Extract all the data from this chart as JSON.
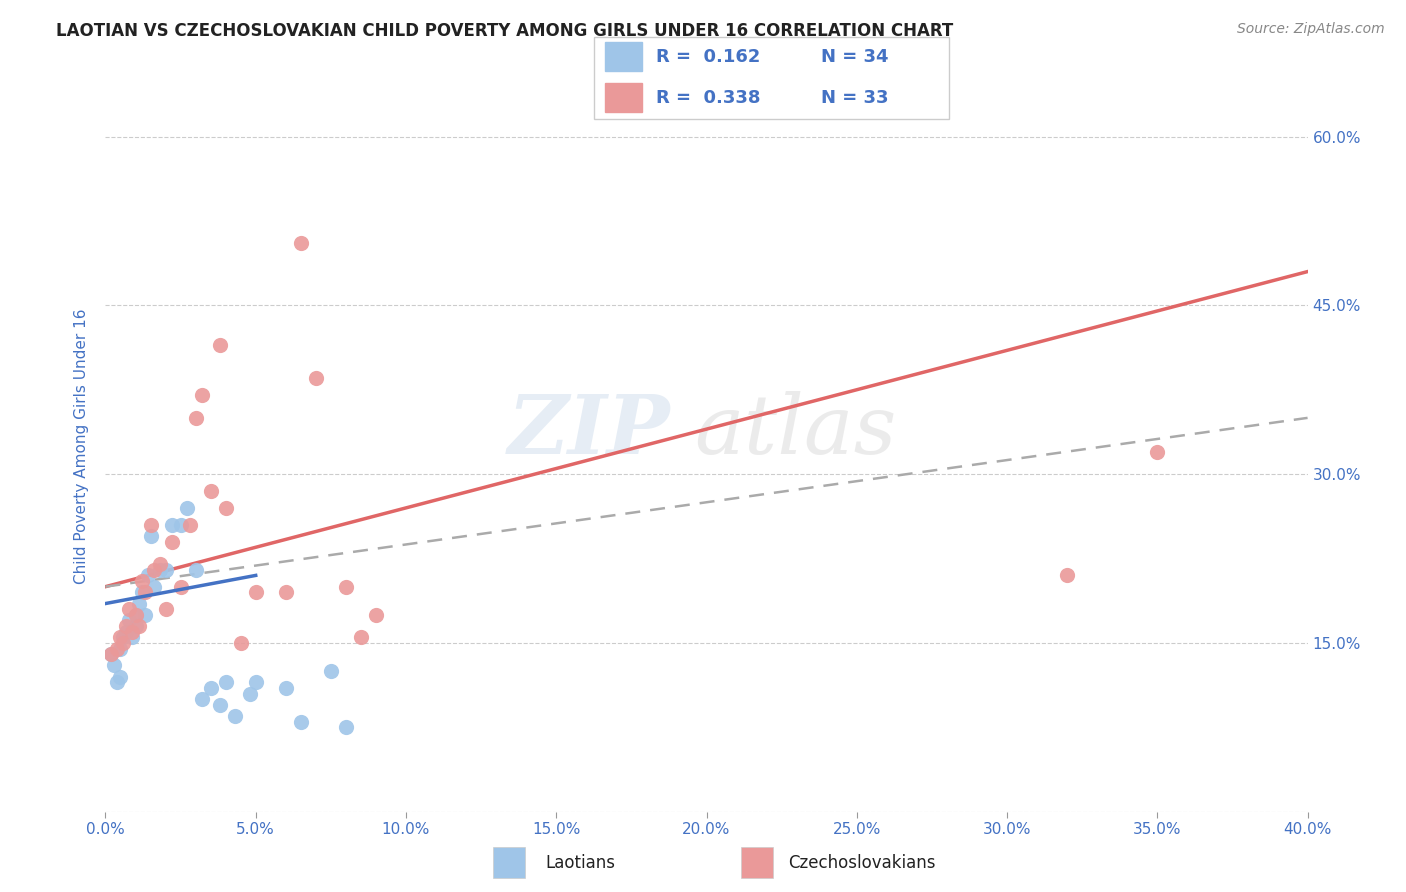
{
  "title": "LAOTIAN VS CZECHOSLOVAKIAN CHILD POVERTY AMONG GIRLS UNDER 16 CORRELATION CHART",
  "source": "Source: ZipAtlas.com",
  "ylabel": "Child Poverty Among Girls Under 16",
  "xlim": [
    0.0,
    0.4
  ],
  "ylim": [
    0.0,
    0.65
  ],
  "xticks": [
    0.0,
    0.05,
    0.1,
    0.15,
    0.2,
    0.25,
    0.3,
    0.35,
    0.4
  ],
  "ytick_values": [
    0.0,
    0.15,
    0.3,
    0.45,
    0.6
  ],
  "right_ytick_labels": [
    "15.0%",
    "30.0%",
    "45.0%",
    "60.0%"
  ],
  "right_ytick_values": [
    0.15,
    0.3,
    0.45,
    0.6
  ],
  "watermark_zip": "ZIP",
  "watermark_atlas": "atlas",
  "blue_color": "#9fc5e8",
  "pink_color": "#ea9999",
  "pink_line_color": "#e06666",
  "blue_dash_color": "#9fc5e8",
  "blue_line_solid_color": "#4472c4",
  "label_color": "#4472c4",
  "legend_r1": "R =  0.162",
  "legend_n1": "N = 34",
  "legend_r2": "R =  0.338",
  "legend_n2": "N = 33",
  "laotians_x": [
    0.002,
    0.003,
    0.004,
    0.005,
    0.005,
    0.006,
    0.007,
    0.008,
    0.009,
    0.01,
    0.01,
    0.011,
    0.012,
    0.013,
    0.014,
    0.015,
    0.016,
    0.018,
    0.02,
    0.022,
    0.025,
    0.027,
    0.03,
    0.032,
    0.035,
    0.038,
    0.04,
    0.043,
    0.048,
    0.05,
    0.06,
    0.065,
    0.075,
    0.08
  ],
  "laotians_y": [
    0.14,
    0.13,
    0.115,
    0.145,
    0.12,
    0.155,
    0.16,
    0.17,
    0.155,
    0.165,
    0.175,
    0.185,
    0.195,
    0.175,
    0.21,
    0.245,
    0.2,
    0.215,
    0.215,
    0.255,
    0.255,
    0.27,
    0.215,
    0.1,
    0.11,
    0.095,
    0.115,
    0.085,
    0.105,
    0.115,
    0.11,
    0.08,
    0.125,
    0.075
  ],
  "czechoslovakians_x": [
    0.002,
    0.004,
    0.005,
    0.006,
    0.007,
    0.008,
    0.009,
    0.01,
    0.011,
    0.012,
    0.013,
    0.015,
    0.016,
    0.018,
    0.02,
    0.022,
    0.025,
    0.028,
    0.03,
    0.032,
    0.035,
    0.038,
    0.04,
    0.045,
    0.05,
    0.06,
    0.065,
    0.07,
    0.08,
    0.085,
    0.09,
    0.35,
    0.32
  ],
  "czechoslovakians_y": [
    0.14,
    0.145,
    0.155,
    0.15,
    0.165,
    0.18,
    0.16,
    0.175,
    0.165,
    0.205,
    0.195,
    0.255,
    0.215,
    0.22,
    0.18,
    0.24,
    0.2,
    0.255,
    0.35,
    0.37,
    0.285,
    0.415,
    0.27,
    0.15,
    0.195,
    0.195,
    0.505,
    0.385,
    0.2,
    0.155,
    0.175,
    0.32,
    0.21
  ]
}
